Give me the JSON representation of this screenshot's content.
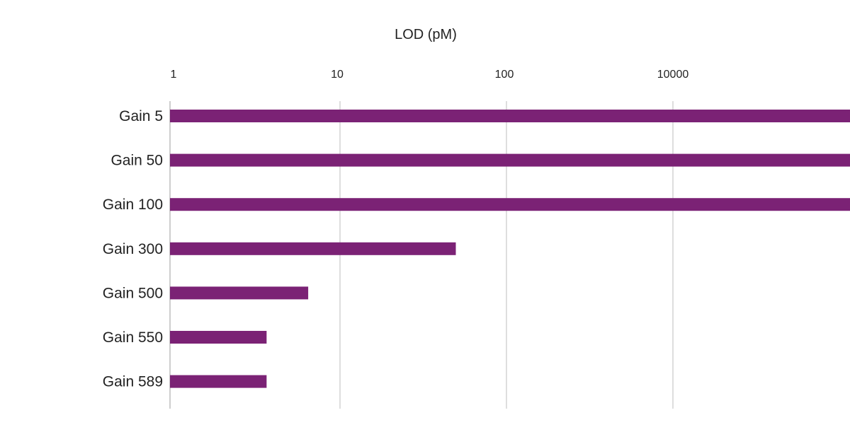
{
  "chart_data": {
    "type": "bar",
    "orientation": "horizontal",
    "title": "",
    "xlabel": "LOD (pM)",
    "ylabel": "",
    "x_tick_labels": [
      "1",
      "10",
      "100",
      "10000"
    ],
    "categories": [
      "Gain 5",
      "Gain 50",
      "Gain 100",
      "Gain 300",
      "Gain 500",
      "Gain 550",
      "Gain 589"
    ],
    "values": [
      32000,
      24000,
      13500,
      48,
      6.5,
      3.7,
      3.7
    ],
    "bar_color": "#7b2275",
    "grid": true,
    "legend": "none"
  }
}
